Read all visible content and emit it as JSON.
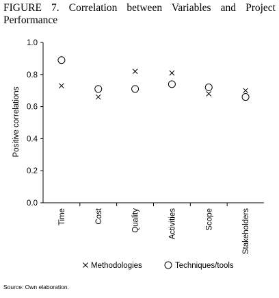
{
  "figure": {
    "title": "FIGURE 7. Correlation between Variables and Project Performance",
    "source": "Source: Own elaboration."
  },
  "chart_data": {
    "type": "scatter",
    "title": "FIGURE 7. Correlation between Variables and Project Performance",
    "xlabel": "",
    "ylabel": "Positive correlations",
    "categories": [
      "Time",
      "Cost",
      "Quality",
      "Activities",
      "Scope",
      "Stakeholders"
    ],
    "ylim": [
      0,
      1.0
    ],
    "yticks": [
      0.0,
      0.2,
      0.4,
      0.6,
      0.8,
      1.0
    ],
    "ytick_labels": [
      "0.0",
      "0.2",
      "0.4",
      "0.6",
      "0.8",
      "1.0"
    ],
    "grid": false,
    "legend_position": "bottom",
    "series": [
      {
        "name": "Methodologies",
        "marker": "x",
        "values": [
          0.73,
          0.66,
          0.82,
          0.81,
          0.68,
          0.7
        ]
      },
      {
        "name": "Techniques/tools",
        "marker": "o",
        "values": [
          0.89,
          0.71,
          0.71,
          0.74,
          0.72,
          0.66
        ]
      }
    ]
  },
  "colors": {
    "ink": "#000000",
    "background": "#ffffff"
  }
}
